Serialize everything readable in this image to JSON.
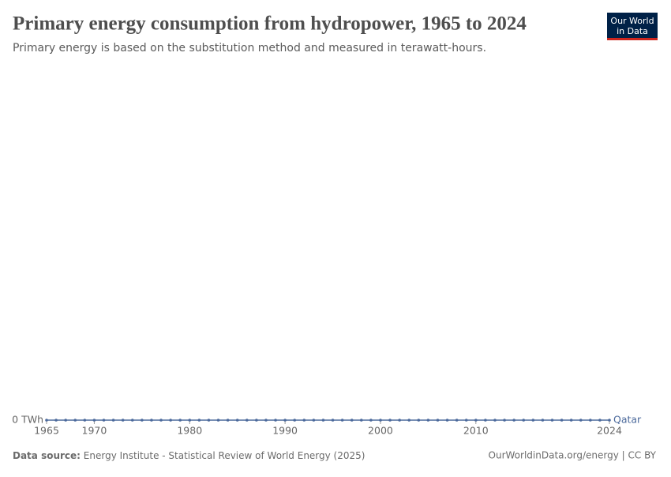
{
  "chart_data": {
    "type": "line",
    "title": "Primary energy consumption from hydropower, 1965 to 2024",
    "subtitle": "Primary energy is based on the substitution method and measured in terawatt-hours.",
    "logo": [
      "Our World",
      "in Data"
    ],
    "source_label": "Data source:",
    "source": "Energy Institute - Statistical Review of World Energy (2025)",
    "credit": "OurWorldinData.org/energy | CC BY",
    "x": [
      1965,
      1966,
      1967,
      1968,
      1969,
      1970,
      1971,
      1972,
      1973,
      1974,
      1975,
      1976,
      1977,
      1978,
      1979,
      1980,
      1981,
      1982,
      1983,
      1984,
      1985,
      1986,
      1987,
      1988,
      1989,
      1990,
      1991,
      1992,
      1993,
      1994,
      1995,
      1996,
      1997,
      1998,
      1999,
      2000,
      2001,
      2002,
      2003,
      2004,
      2005,
      2006,
      2007,
      2008,
      2009,
      2010,
      2011,
      2012,
      2013,
      2014,
      2015,
      2016,
      2017,
      2018,
      2019,
      2020,
      2021,
      2022,
      2023,
      2024
    ],
    "series": [
      {
        "name": "Qatar",
        "color": "#4c6a9c",
        "values": [
          0,
          0,
          0,
          0,
          0,
          0,
          0,
          0,
          0,
          0,
          0,
          0,
          0,
          0,
          0,
          0,
          0,
          0,
          0,
          0,
          0,
          0,
          0,
          0,
          0,
          0,
          0,
          0,
          0,
          0,
          0,
          0,
          0,
          0,
          0,
          0,
          0,
          0,
          0,
          0,
          0,
          0,
          0,
          0,
          0,
          0,
          0,
          0,
          0,
          0,
          0,
          0,
          0,
          0,
          0,
          0,
          0,
          0,
          0,
          0
        ]
      }
    ],
    "xlim": [
      1965,
      2024
    ],
    "xticks": [
      1965,
      1970,
      1980,
      1990,
      2000,
      2010,
      2024
    ],
    "ylim": [
      0,
      1
    ],
    "yticks": [
      {
        "value": 0,
        "label": "0 TWh"
      }
    ],
    "grid": true
  }
}
